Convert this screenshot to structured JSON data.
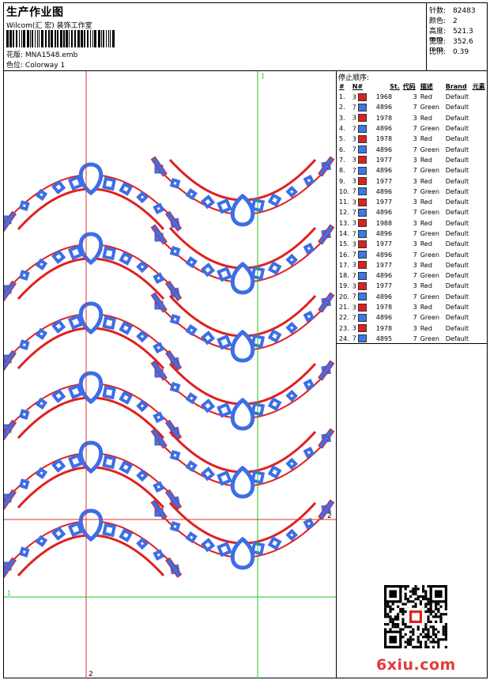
{
  "header": {
    "title": "生产作业图",
    "company": "Wilcom(汇 宏) 装饰工作室",
    "file_label": "花版:",
    "file_name": "MNA1548.emb",
    "color_label": "色位:",
    "colorway": "Colorway 1"
  },
  "stats": {
    "stitches": {
      "label": "针数:",
      "value": "82483"
    },
    "colors": {
      "label": "颜色:",
      "value": "2"
    },
    "height": {
      "label": "高度:",
      "value": "521.3 mm"
    },
    "width": {
      "label": "宽度:",
      "value": "352.6 mm"
    },
    "scale": {
      "label": "比例:",
      "value": "0.39"
    }
  },
  "stops": {
    "title": "停止顺序:",
    "headers": [
      "#",
      "N#",
      "St.",
      "代码",
      "描述",
      "Brand",
      "元素"
    ],
    "rows": [
      {
        "n": "1.",
        "needle": "3",
        "color": "#e02020",
        "code": "1968",
        "st": "3",
        "desc": "Red",
        "brand": "Default"
      },
      {
        "n": "2.",
        "needle": "7",
        "color": "#3c78e6",
        "code": "4896",
        "st": "7",
        "desc": "Green",
        "brand": "Default"
      },
      {
        "n": "3.",
        "needle": "3",
        "color": "#e02020",
        "code": "1978",
        "st": "3",
        "desc": "Red",
        "brand": "Default"
      },
      {
        "n": "4.",
        "needle": "7",
        "color": "#3c78e6",
        "code": "4896",
        "st": "7",
        "desc": "Green",
        "brand": "Default"
      },
      {
        "n": "5.",
        "needle": "3",
        "color": "#e02020",
        "code": "1978",
        "st": "3",
        "desc": "Red",
        "brand": "Default"
      },
      {
        "n": "6.",
        "needle": "7",
        "color": "#3c78e6",
        "code": "4896",
        "st": "7",
        "desc": "Green",
        "brand": "Default"
      },
      {
        "n": "7.",
        "needle": "3",
        "color": "#e02020",
        "code": "1977",
        "st": "3",
        "desc": "Red",
        "brand": "Default"
      },
      {
        "n": "8.",
        "needle": "7",
        "color": "#3c78e6",
        "code": "4896",
        "st": "7",
        "desc": "Green",
        "brand": "Default"
      },
      {
        "n": "9.",
        "needle": "3",
        "color": "#e02020",
        "code": "1977",
        "st": "3",
        "desc": "Red",
        "brand": "Default"
      },
      {
        "n": "10.",
        "needle": "7",
        "color": "#3c78e6",
        "code": "4896",
        "st": "7",
        "desc": "Green",
        "brand": "Default"
      },
      {
        "n": "11.",
        "needle": "3",
        "color": "#e02020",
        "code": "1977",
        "st": "3",
        "desc": "Red",
        "brand": "Default"
      },
      {
        "n": "12.",
        "needle": "7",
        "color": "#3c78e6",
        "code": "4896",
        "st": "7",
        "desc": "Green",
        "brand": "Default"
      },
      {
        "n": "13.",
        "needle": "3",
        "color": "#e02020",
        "code": "1988",
        "st": "3",
        "desc": "Red",
        "brand": "Default"
      },
      {
        "n": "14.",
        "needle": "7",
        "color": "#3c78e6",
        "code": "4896",
        "st": "7",
        "desc": "Green",
        "brand": "Default"
      },
      {
        "n": "15.",
        "needle": "3",
        "color": "#e02020",
        "code": "1977",
        "st": "3",
        "desc": "Red",
        "brand": "Default"
      },
      {
        "n": "16.",
        "needle": "7",
        "color": "#3c78e6",
        "code": "4896",
        "st": "7",
        "desc": "Green",
        "brand": "Default"
      },
      {
        "n": "17.",
        "needle": "3",
        "color": "#e02020",
        "code": "1977",
        "st": "3",
        "desc": "Red",
        "brand": "Default"
      },
      {
        "n": "18.",
        "needle": "7",
        "color": "#3c78e6",
        "code": "4896",
        "st": "7",
        "desc": "Green",
        "brand": "Default"
      },
      {
        "n": "19.",
        "needle": "3",
        "color": "#e02020",
        "code": "1977",
        "st": "3",
        "desc": "Red",
        "brand": "Default"
      },
      {
        "n": "20.",
        "needle": "7",
        "color": "#3c78e6",
        "code": "4896",
        "st": "7",
        "desc": "Green",
        "brand": "Default"
      },
      {
        "n": "21.",
        "needle": "3",
        "color": "#e02020",
        "code": "1978",
        "st": "3",
        "desc": "Red",
        "brand": "Default"
      },
      {
        "n": "22.",
        "needle": "7",
        "color": "#3c78e6",
        "code": "4896",
        "st": "7",
        "desc": "Green",
        "brand": "Default"
      },
      {
        "n": "23.",
        "needle": "3",
        "color": "#e02020",
        "code": "1978",
        "st": "3",
        "desc": "Red",
        "brand": "Default"
      },
      {
        "n": "24.",
        "needle": "7",
        "color": "#3c78e6",
        "code": "4895",
        "st": "7",
        "desc": "Green",
        "brand": "Default"
      }
    ]
  },
  "guides": {
    "v1": "1",
    "v2": "2",
    "h1": "1",
    "h2": "2"
  },
  "colors": {
    "blue": "#3c6ee6",
    "red": "#e02020",
    "green_guide": "#22c322",
    "red_guide": "#e03030"
  },
  "watermark": {
    "site": "6xiu.com"
  }
}
